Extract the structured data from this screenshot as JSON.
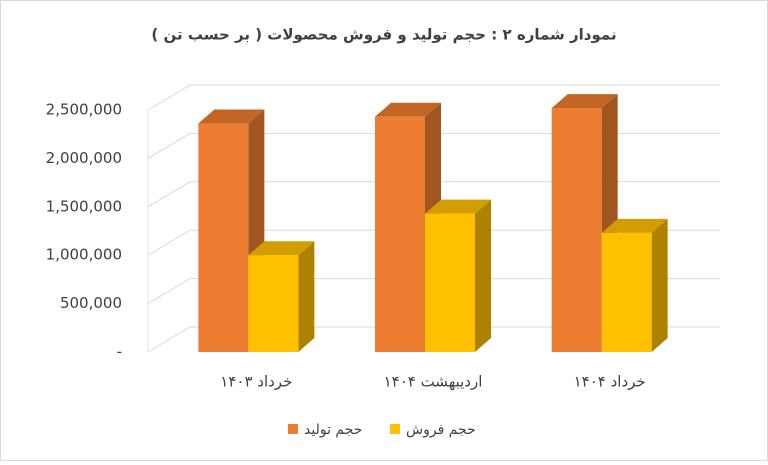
{
  "chart_data": {
    "type": "bar3d",
    "title": "نمودار شماره ۲ : حجم  تولید و فروش محصولات ( بر حسب تن )",
    "categories": [
      "خرداد ۱۴۰۳",
      "اردیبهشت ۱۴۰۴",
      "خرداد ۱۴۰۴"
    ],
    "series": [
      {
        "name": "حجم تولید",
        "color": "#ED7D31",
        "values": [
          2360000,
          2430000,
          2520000
        ]
      },
      {
        "name": "حجم فروش",
        "color": "#FFC000",
        "values": [
          1000000,
          1430000,
          1230000
        ]
      }
    ],
    "ylim": [
      0,
      2500000
    ],
    "yticks": [
      {
        "value": 0,
        "label": "-"
      },
      {
        "value": 500000,
        "label": "500,000"
      },
      {
        "value": 1000000,
        "label": "1,000,000"
      },
      {
        "value": 1500000,
        "label": "1,500,000"
      },
      {
        "value": 2000000,
        "label": "2,000,000"
      },
      {
        "value": 2500000,
        "label": "2,500,000"
      }
    ],
    "grid": true,
    "legend": "bottom"
  }
}
